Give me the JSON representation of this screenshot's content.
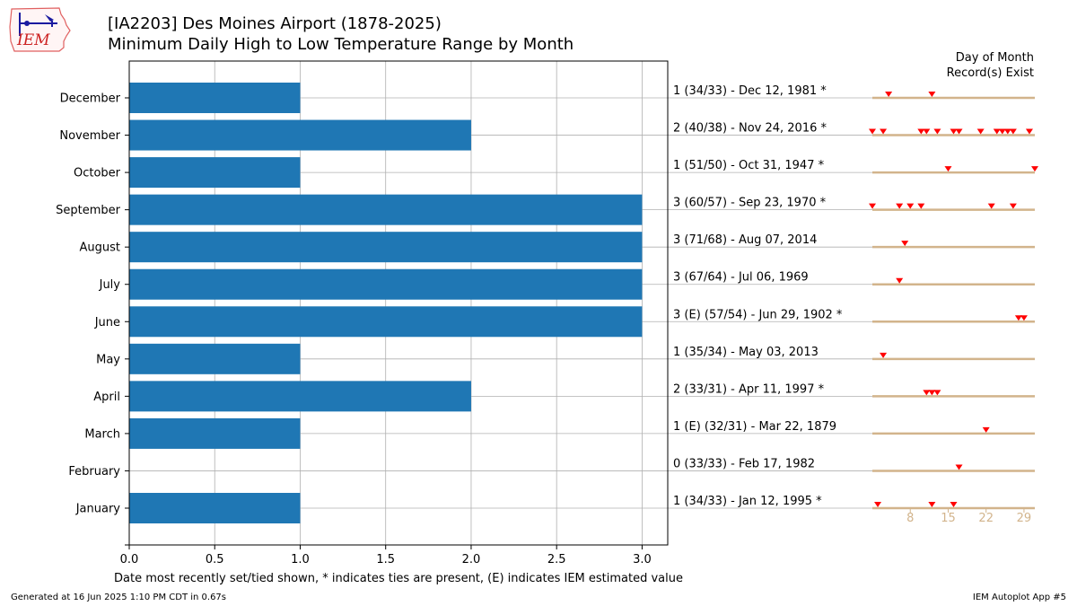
{
  "title_line1": "[IA2203] Des Moines Airport (1878-2025)",
  "title_line2": "Minimum Daily High to Low Temperature Range by Month",
  "footer_left": "Generated at 16 Jun 2025 1:10 PM CDT in 0.67s",
  "footer_right": "IEM Autoplot App #5",
  "logo_text": "IEM",
  "colors": {
    "bar": "#1f77b4",
    "grid": "#b0b0b0",
    "marker": "#ff0000",
    "day_line": "#d2b48c"
  },
  "chart_data": {
    "type": "bar",
    "orientation": "horizontal",
    "categories": [
      "January",
      "February",
      "March",
      "April",
      "May",
      "June",
      "July",
      "August",
      "September",
      "October",
      "November",
      "December"
    ],
    "values": [
      1,
      0,
      1,
      2,
      1,
      3,
      3,
      3,
      3,
      1,
      2,
      1
    ],
    "annotations": [
      "1 (34/33) - Jan 12, 1995 *",
      "0 (33/33) - Feb 17, 1982",
      "1 (E) (32/31) - Mar 22, 1879",
      "2 (33/31) - Apr 11, 1997 *",
      "1 (35/34) - May 03, 2013",
      "3 (E) (57/54) - Jun 29, 1902 *",
      "3 (67/64) - Jul 06, 1969",
      "3 (71/68) - Aug 07, 2014",
      "3 (60/57) - Sep 23, 1970 *",
      "1 (51/50) - Oct 31, 1947 *",
      "2 (40/38) - Nov 24, 2016 *",
      "1 (34/33) - Dec 12, 1981 *"
    ],
    "xlim": [
      0,
      3.15
    ],
    "xticks": [
      0.0,
      0.5,
      1.0,
      1.5,
      2.0,
      2.5,
      3.0
    ],
    "xtick_labels": [
      "0.0",
      "0.5",
      "1.0",
      "1.5",
      "2.0",
      "2.5",
      "3.0"
    ],
    "xlabel": "Date most recently set/tied shown, * indicates ties are present, (E) indicates IEM estimated value",
    "grid": true,
    "day_of_month": {
      "title_line1": "Day of Month",
      "title_line2": "Record(s) Exist",
      "xlim": [
        1,
        31
      ],
      "ticks": [
        8,
        15,
        22,
        29
      ],
      "tick_labels": [
        "8",
        "15",
        "22",
        "29"
      ],
      "days": [
        [
          2,
          12,
          16
        ],
        [
          17
        ],
        [
          22
        ],
        [
          11,
          12,
          13
        ],
        [
          3
        ],
        [
          28,
          29
        ],
        [
          6
        ],
        [
          7
        ],
        [
          1,
          6,
          8,
          10,
          23,
          27
        ],
        [
          15,
          31
        ],
        [
          1,
          3,
          10,
          11,
          13,
          16,
          17,
          21,
          24,
          25,
          26,
          27,
          30
        ],
        [
          4,
          12
        ]
      ]
    }
  }
}
